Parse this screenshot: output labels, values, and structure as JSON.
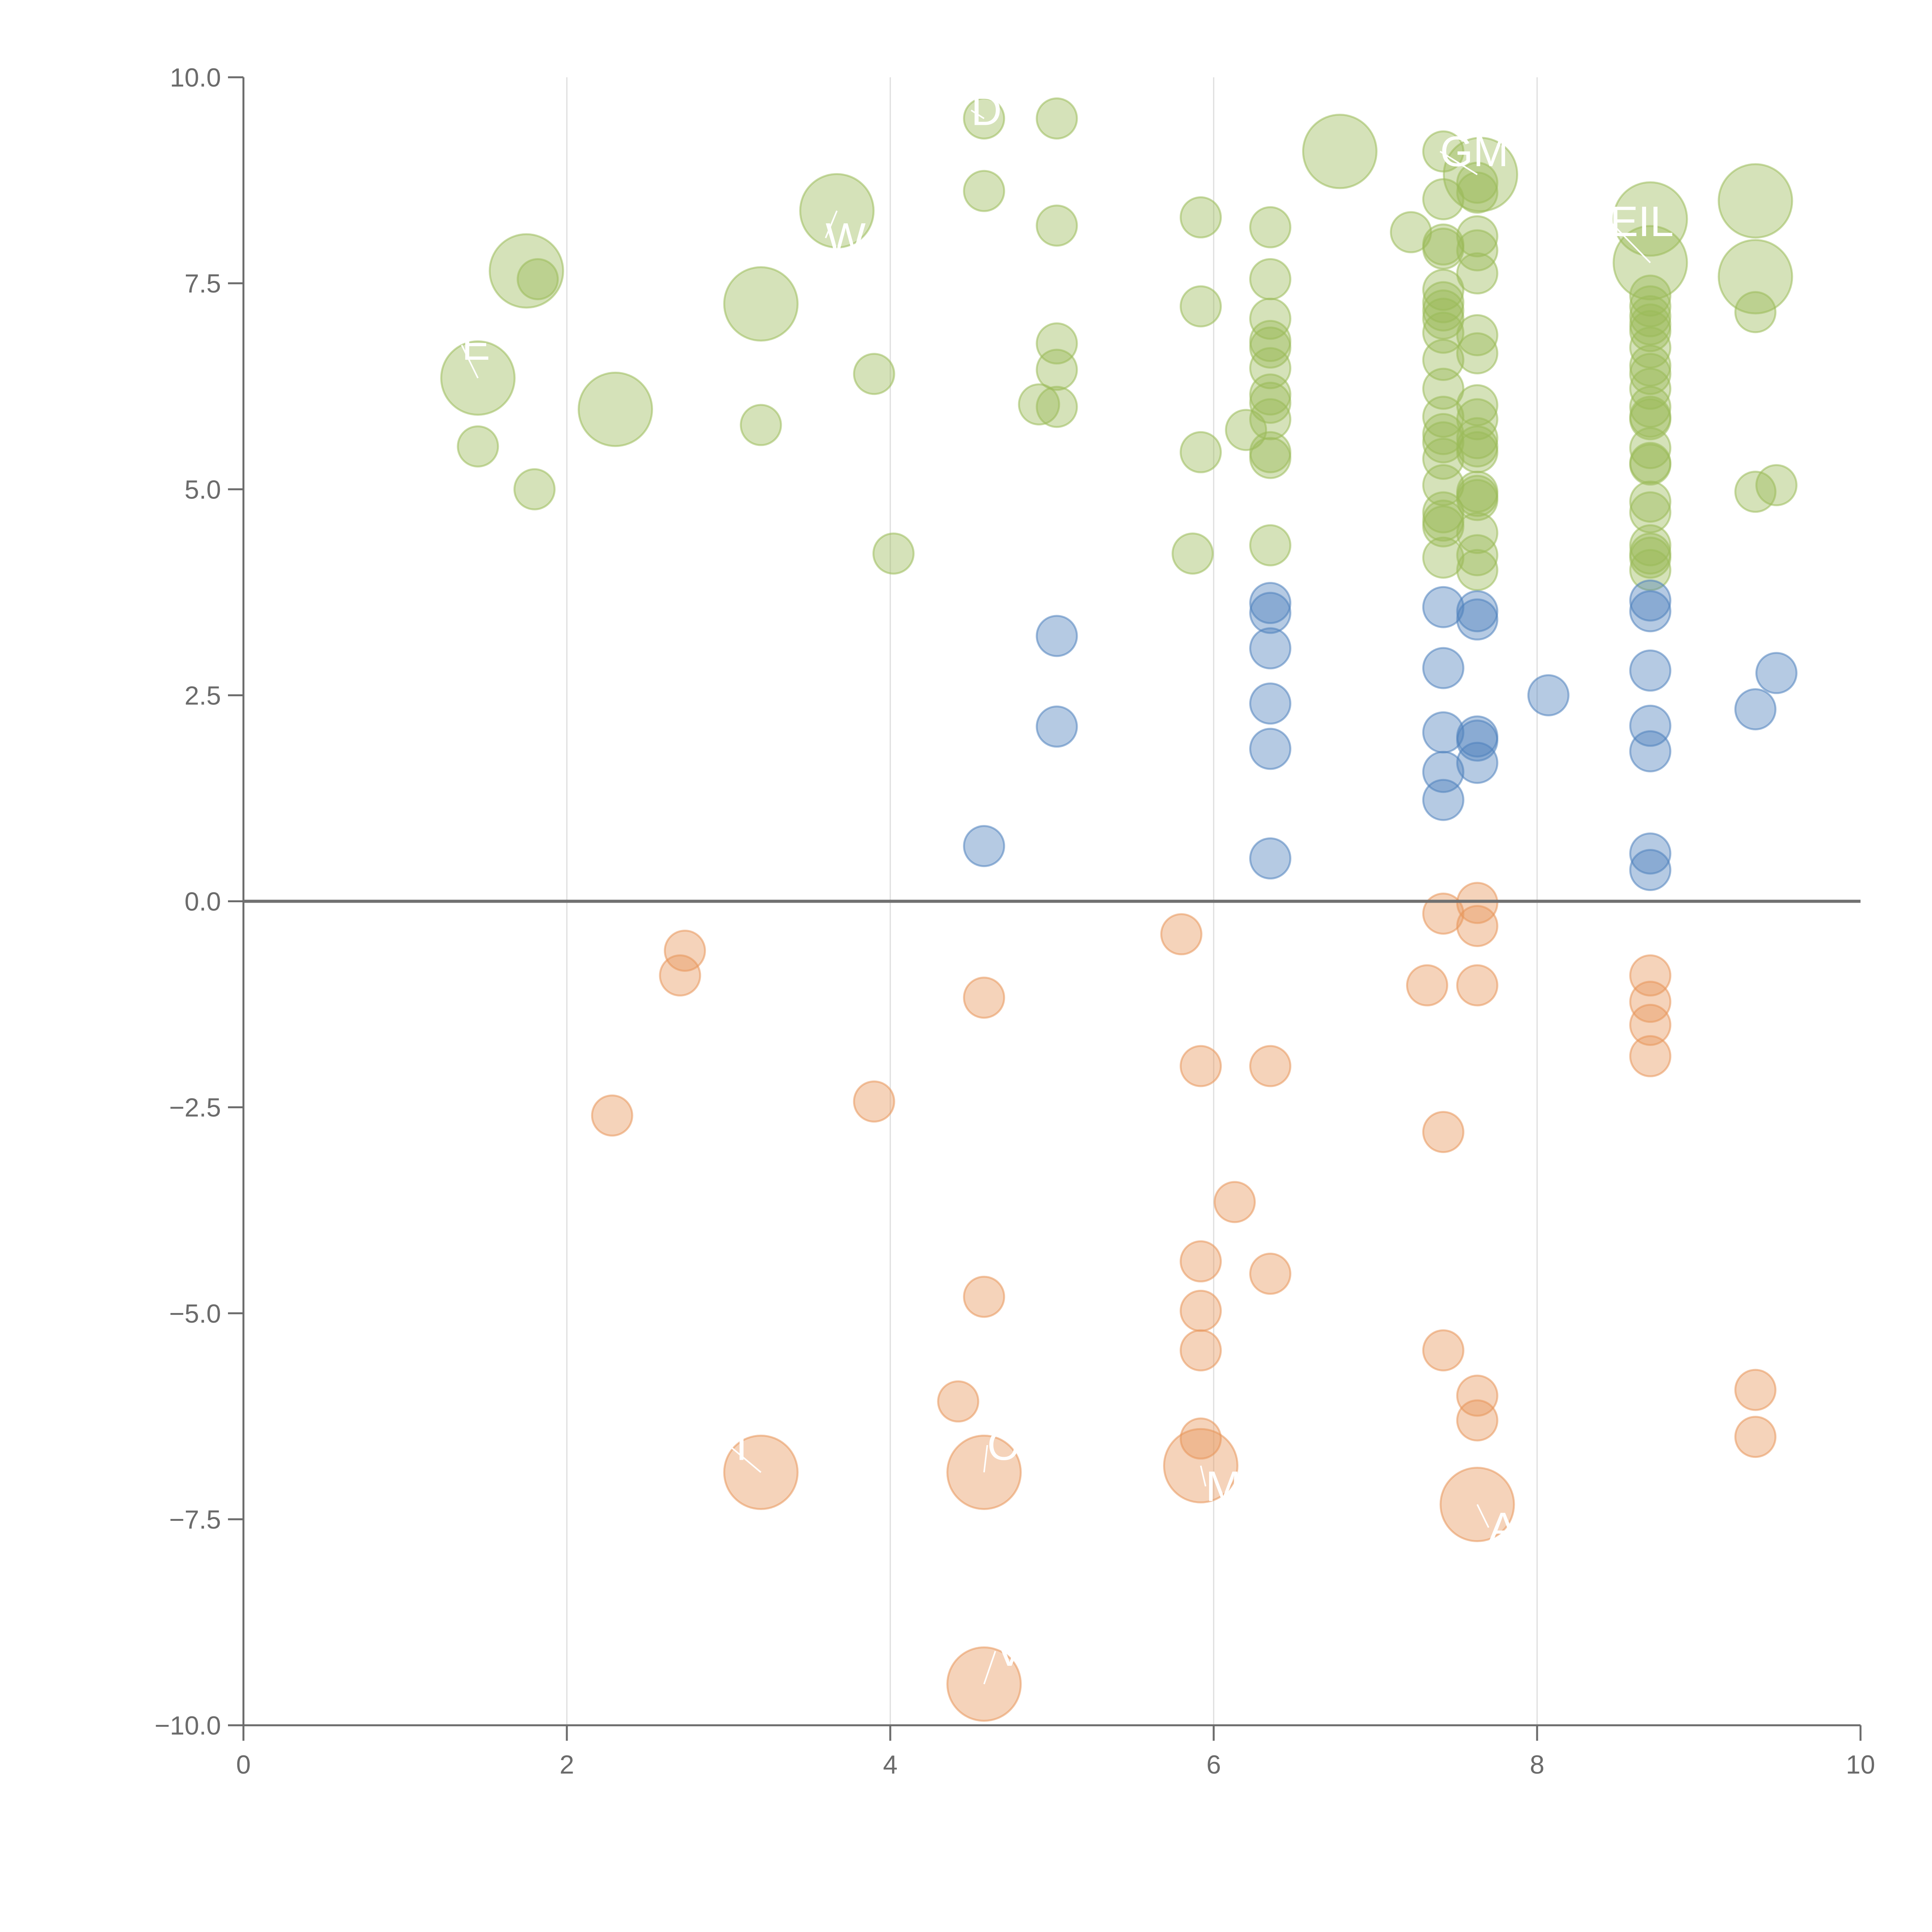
{
  "chart_data": {
    "type": "scatter",
    "title": "",
    "xlabel": "",
    "ylabel": "",
    "xlim": [
      0,
      10
    ],
    "ylim": [
      -10,
      10
    ],
    "x_ticks": [
      0,
      2,
      4,
      6,
      8,
      10
    ],
    "x_tick_labels": [
      "0",
      "2",
      "4",
      "6",
      "8",
      "10"
    ],
    "y_ticks": [
      10,
      7.5,
      5,
      2.5,
      0,
      -2.5,
      -5,
      -7.5,
      -10
    ],
    "y_tick_labels": [
      "10.0",
      "7.5",
      "5.0",
      "2.5",
      "0.0",
      "−2.5",
      "−5.0",
      "−7.5",
      "−10.0"
    ],
    "vertical_gridlines": [
      2,
      4,
      6,
      8
    ],
    "reference_line_y": 0,
    "colors": {
      "positive_high": "#9bbb59",
      "positive_low": "#4f81bd",
      "negative": "#e8955a",
      "axis": "#6b6b6b",
      "grid": "#dddddd",
      "zero_line": "#707070"
    },
    "series": [
      {
        "name": "high",
        "color": "#9bbb59",
        "points": [
          {
            "x": 1.45,
            "y": 6.35,
            "s": 3
          },
          {
            "x": 1.75,
            "y": 7.65,
            "s": 3
          },
          {
            "x": 2.3,
            "y": 5.97,
            "s": 3
          },
          {
            "x": 3.2,
            "y": 7.25,
            "s": 3
          },
          {
            "x": 3.67,
            "y": 8.38,
            "s": 3
          },
          {
            "x": 6.78,
            "y": 9.1,
            "s": 3
          },
          {
            "x": 7.65,
            "y": 8.82,
            "s": 3
          },
          {
            "x": 8.7,
            "y": 8.28,
            "s": 3
          },
          {
            "x": 8.7,
            "y": 7.75,
            "s": 3
          },
          {
            "x": 9.35,
            "y": 8.5,
            "s": 3
          },
          {
            "x": 9.35,
            "y": 7.58,
            "s": 3
          },
          {
            "x": 1.45,
            "y": 5.52,
            "s": 1
          },
          {
            "x": 1.8,
            "y": 5.0,
            "s": 1
          },
          {
            "x": 1.82,
            "y": 7.55,
            "s": 1
          },
          {
            "x": 3.2,
            "y": 5.78,
            "s": 1
          },
          {
            "x": 3.9,
            "y": 6.4,
            "s": 1
          },
          {
            "x": 4.02,
            "y": 4.22,
            "s": 1
          },
          {
            "x": 4.58,
            "y": 9.5,
            "s": 1
          },
          {
            "x": 4.58,
            "y": 8.62,
            "s": 1
          },
          {
            "x": 4.92,
            "y": 6.03,
            "s": 1
          },
          {
            "x": 5.03,
            "y": 9.5,
            "s": 1
          },
          {
            "x": 5.03,
            "y": 8.2,
            "s": 1
          },
          {
            "x": 5.03,
            "y": 6.77,
            "s": 1
          },
          {
            "x": 5.03,
            "y": 6.45,
            "s": 1
          },
          {
            "x": 5.03,
            "y": 6.0,
            "s": 1
          },
          {
            "x": 5.87,
            "y": 4.22,
            "s": 1
          },
          {
            "x": 5.92,
            "y": 8.3,
            "s": 1
          },
          {
            "x": 5.92,
            "y": 7.22,
            "s": 1
          },
          {
            "x": 5.92,
            "y": 5.45,
            "s": 1
          },
          {
            "x": 6.2,
            "y": 5.72,
            "s": 1
          },
          {
            "x": 6.35,
            "y": 8.18,
            "s": 1
          },
          {
            "x": 6.35,
            "y": 7.55,
            "s": 1
          },
          {
            "x": 6.35,
            "y": 7.07,
            "s": 1
          },
          {
            "x": 6.35,
            "y": 6.8,
            "s": 1
          },
          {
            "x": 6.35,
            "y": 6.72,
            "s": 1
          },
          {
            "x": 6.35,
            "y": 6.47,
            "s": 1
          },
          {
            "x": 6.35,
            "y": 6.15,
            "s": 1
          },
          {
            "x": 6.35,
            "y": 6.05,
            "s": 1
          },
          {
            "x": 6.35,
            "y": 5.85,
            "s": 1
          },
          {
            "x": 6.35,
            "y": 5.45,
            "s": 1
          },
          {
            "x": 6.35,
            "y": 5.38,
            "s": 1
          },
          {
            "x": 6.35,
            "y": 4.32,
            "s": 1
          },
          {
            "x": 7.22,
            "y": 8.12,
            "s": 1
          },
          {
            "x": 7.42,
            "y": 9.1,
            "s": 1
          },
          {
            "x": 7.42,
            "y": 8.52,
            "s": 1
          },
          {
            "x": 7.42,
            "y": 7.97,
            "s": 1
          },
          {
            "x": 7.42,
            "y": 7.92,
            "s": 1
          },
          {
            "x": 7.42,
            "y": 7.42,
            "s": 1
          },
          {
            "x": 7.42,
            "y": 7.27,
            "s": 1
          },
          {
            "x": 7.42,
            "y": 7.17,
            "s": 1
          },
          {
            "x": 7.42,
            "y": 7.07,
            "s": 1
          },
          {
            "x": 7.42,
            "y": 6.9,
            "s": 1
          },
          {
            "x": 7.42,
            "y": 6.57,
            "s": 1
          },
          {
            "x": 7.42,
            "y": 6.22,
            "s": 1
          },
          {
            "x": 7.42,
            "y": 5.88,
            "s": 1
          },
          {
            "x": 7.42,
            "y": 5.67,
            "s": 1
          },
          {
            "x": 7.42,
            "y": 5.57,
            "s": 1
          },
          {
            "x": 7.42,
            "y": 5.37,
            "s": 1
          },
          {
            "x": 7.42,
            "y": 5.05,
            "s": 1
          },
          {
            "x": 7.42,
            "y": 4.72,
            "s": 1
          },
          {
            "x": 7.42,
            "y": 4.62,
            "s": 1
          },
          {
            "x": 7.42,
            "y": 4.55,
            "s": 1
          },
          {
            "x": 7.42,
            "y": 4.17,
            "s": 1
          },
          {
            "x": 7.63,
            "y": 8.72,
            "s": 1
          },
          {
            "x": 7.63,
            "y": 8.6,
            "s": 1
          },
          {
            "x": 7.63,
            "y": 8.07,
            "s": 1
          },
          {
            "x": 7.63,
            "y": 7.9,
            "s": 1
          },
          {
            "x": 7.63,
            "y": 7.62,
            "s": 1
          },
          {
            "x": 7.63,
            "y": 6.87,
            "s": 1
          },
          {
            "x": 7.63,
            "y": 6.65,
            "s": 1
          },
          {
            "x": 7.63,
            "y": 6.02,
            "s": 1
          },
          {
            "x": 7.63,
            "y": 5.85,
            "s": 1
          },
          {
            "x": 7.63,
            "y": 5.62,
            "s": 1
          },
          {
            "x": 7.63,
            "y": 5.52,
            "s": 1
          },
          {
            "x": 7.63,
            "y": 5.45,
            "s": 1
          },
          {
            "x": 7.63,
            "y": 4.97,
            "s": 1
          },
          {
            "x": 7.63,
            "y": 4.92,
            "s": 1
          },
          {
            "x": 7.63,
            "y": 4.87,
            "s": 1
          },
          {
            "x": 7.63,
            "y": 4.47,
            "s": 1
          },
          {
            "x": 7.63,
            "y": 4.2,
            "s": 1
          },
          {
            "x": 7.63,
            "y": 4.02,
            "s": 1
          },
          {
            "x": 8.7,
            "y": 7.35,
            "s": 1
          },
          {
            "x": 8.7,
            "y": 7.22,
            "s": 1
          },
          {
            "x": 8.7,
            "y": 7.1,
            "s": 1
          },
          {
            "x": 8.7,
            "y": 7.0,
            "s": 1
          },
          {
            "x": 8.7,
            "y": 6.92,
            "s": 1
          },
          {
            "x": 8.7,
            "y": 6.72,
            "s": 1
          },
          {
            "x": 8.7,
            "y": 6.5,
            "s": 1
          },
          {
            "x": 8.7,
            "y": 6.4,
            "s": 1
          },
          {
            "x": 8.7,
            "y": 6.22,
            "s": 1
          },
          {
            "x": 8.7,
            "y": 6.0,
            "s": 1
          },
          {
            "x": 8.7,
            "y": 5.88,
            "s": 1
          },
          {
            "x": 8.7,
            "y": 5.85,
            "s": 1
          },
          {
            "x": 8.7,
            "y": 5.5,
            "s": 1
          },
          {
            "x": 8.7,
            "y": 5.32,
            "s": 1
          },
          {
            "x": 8.7,
            "y": 5.3,
            "s": 1
          },
          {
            "x": 8.7,
            "y": 4.85,
            "s": 1
          },
          {
            "x": 8.7,
            "y": 4.72,
            "s": 1
          },
          {
            "x": 8.7,
            "y": 4.32,
            "s": 1
          },
          {
            "x": 8.7,
            "y": 4.22,
            "s": 1
          },
          {
            "x": 8.7,
            "y": 4.17,
            "s": 1
          },
          {
            "x": 8.7,
            "y": 4.02,
            "s": 1
          },
          {
            "x": 9.35,
            "y": 7.15,
            "s": 1
          },
          {
            "x": 9.35,
            "y": 4.97,
            "s": 1
          },
          {
            "x": 9.48,
            "y": 5.05,
            "s": 1
          }
        ]
      },
      {
        "name": "low",
        "color": "#4f81bd",
        "points": [
          {
            "x": 4.58,
            "y": 0.67,
            "s": 1
          },
          {
            "x": 5.03,
            "y": 3.22,
            "s": 1
          },
          {
            "x": 5.03,
            "y": 2.12,
            "s": 1
          },
          {
            "x": 6.35,
            "y": 3.62,
            "s": 1
          },
          {
            "x": 6.35,
            "y": 3.5,
            "s": 1
          },
          {
            "x": 6.35,
            "y": 3.07,
            "s": 1
          },
          {
            "x": 6.35,
            "y": 2.4,
            "s": 1
          },
          {
            "x": 6.35,
            "y": 1.85,
            "s": 1
          },
          {
            "x": 6.35,
            "y": 0.52,
            "s": 1
          },
          {
            "x": 7.42,
            "y": 3.57,
            "s": 1
          },
          {
            "x": 7.42,
            "y": 2.83,
            "s": 1
          },
          {
            "x": 7.42,
            "y": 2.05,
            "s": 1
          },
          {
            "x": 7.42,
            "y": 1.57,
            "s": 1
          },
          {
            "x": 7.42,
            "y": 1.23,
            "s": 1
          },
          {
            "x": 7.63,
            "y": 3.52,
            "s": 1
          },
          {
            "x": 7.63,
            "y": 3.42,
            "s": 1
          },
          {
            "x": 7.63,
            "y": 2.0,
            "s": 1
          },
          {
            "x": 7.63,
            "y": 1.95,
            "s": 1
          },
          {
            "x": 7.63,
            "y": 1.68,
            "s": 1
          },
          {
            "x": 8.07,
            "y": 2.5,
            "s": 1
          },
          {
            "x": 8.7,
            "y": 3.65,
            "s": 1
          },
          {
            "x": 8.7,
            "y": 3.52,
            "s": 1
          },
          {
            "x": 8.7,
            "y": 2.8,
            "s": 1
          },
          {
            "x": 8.7,
            "y": 2.13,
            "s": 1
          },
          {
            "x": 8.7,
            "y": 1.82,
            "s": 1
          },
          {
            "x": 8.7,
            "y": 0.58,
            "s": 1
          },
          {
            "x": 8.7,
            "y": 0.38,
            "s": 1
          },
          {
            "x": 9.35,
            "y": 2.33,
            "s": 1
          },
          {
            "x": 9.48,
            "y": 2.77,
            "s": 1
          }
        ]
      },
      {
        "name": "negative",
        "color": "#e8955a",
        "points": [
          {
            "x": 3.2,
            "y": -6.93,
            "s": 3
          },
          {
            "x": 4.58,
            "y": -6.93,
            "s": 3
          },
          {
            "x": 5.92,
            "y": -6.85,
            "s": 3
          },
          {
            "x": 7.63,
            "y": -7.32,
            "s": 3
          },
          {
            "x": 4.58,
            "y": -9.5,
            "s": 3
          },
          {
            "x": 2.28,
            "y": -2.6,
            "s": 1
          },
          {
            "x": 2.7,
            "y": -0.9,
            "s": 1
          },
          {
            "x": 2.73,
            "y": -0.6,
            "s": 1
          },
          {
            "x": 3.9,
            "y": -2.43,
            "s": 1
          },
          {
            "x": 4.42,
            "y": -6.07,
            "s": 1
          },
          {
            "x": 4.58,
            "y": -1.17,
            "s": 1
          },
          {
            "x": 4.58,
            "y": -4.8,
            "s": 1
          },
          {
            "x": 5.8,
            "y": -0.4,
            "s": 1
          },
          {
            "x": 5.92,
            "y": -2.0,
            "s": 1
          },
          {
            "x": 5.92,
            "y": -4.37,
            "s": 1
          },
          {
            "x": 5.92,
            "y": -4.97,
            "s": 1
          },
          {
            "x": 5.92,
            "y": -5.45,
            "s": 1
          },
          {
            "x": 5.92,
            "y": -6.52,
            "s": 1
          },
          {
            "x": 6.13,
            "y": -3.65,
            "s": 1
          },
          {
            "x": 6.35,
            "y": -2.0,
            "s": 1
          },
          {
            "x": 6.35,
            "y": -4.52,
            "s": 1
          },
          {
            "x": 7.32,
            "y": -1.02,
            "s": 1
          },
          {
            "x": 7.42,
            "y": -0.15,
            "s": 1
          },
          {
            "x": 7.42,
            "y": -2.8,
            "s": 1
          },
          {
            "x": 7.42,
            "y": -5.45,
            "s": 1
          },
          {
            "x": 7.63,
            "y": -0.02,
            "s": 1
          },
          {
            "x": 7.63,
            "y": -0.3,
            "s": 1
          },
          {
            "x": 7.63,
            "y": -1.02,
            "s": 1
          },
          {
            "x": 7.63,
            "y": -6.0,
            "s": 1
          },
          {
            "x": 7.63,
            "y": -6.3,
            "s": 1
          },
          {
            "x": 8.7,
            "y": -0.9,
            "s": 1
          },
          {
            "x": 8.7,
            "y": -1.22,
            "s": 1
          },
          {
            "x": 8.7,
            "y": -1.5,
            "s": 1
          },
          {
            "x": 8.7,
            "y": -1.88,
            "s": 1
          },
          {
            "x": 9.35,
            "y": -5.93,
            "s": 1
          },
          {
            "x": 9.35,
            "y": -6.5,
            "s": 1
          }
        ]
      }
    ],
    "annotations": [
      {
        "text": "D",
        "x": 4.5,
        "y": 9.6,
        "ax": 4.58,
        "ay": 9.5
      },
      {
        "text": "GM",
        "x": 7.4,
        "y": 9.1,
        "ax": 7.63,
        "ay": 8.82
      },
      {
        "text": "EIL",
        "x": 8.45,
        "y": 8.25,
        "ax": 8.7,
        "ay": 7.75
      },
      {
        "text": "W",
        "x": 3.6,
        "y": 8.05,
        "ax": 3.67,
        "ay": 8.38
      },
      {
        "text": "E",
        "x": 1.35,
        "y": 6.75,
        "ax": 1.45,
        "ay": 6.35
      },
      {
        "text": "T",
        "x": 3.0,
        "y": -6.6,
        "ax": 3.2,
        "ay": -6.93
      },
      {
        "text": "O",
        "x": 4.6,
        "y": -6.6,
        "ax": 4.58,
        "ay": -6.93
      },
      {
        "text": "M",
        "x": 5.95,
        "y": -7.1,
        "ax": 5.92,
        "ay": -6.85
      },
      {
        "text": "A",
        "x": 7.7,
        "y": -7.6,
        "ax": 7.63,
        "ay": -7.32
      },
      {
        "text": "V",
        "x": 4.65,
        "y": -9.1,
        "ax": 4.58,
        "ay": -9.5
      }
    ]
  }
}
